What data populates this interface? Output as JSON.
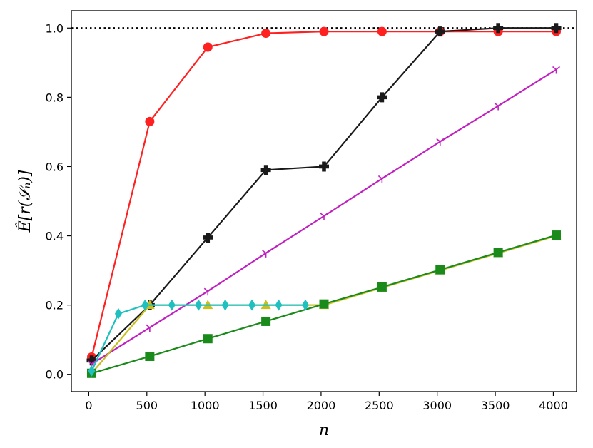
{
  "chart_data": {
    "type": "line",
    "xlabel": "n",
    "ylabel": "Ê[r(𝒮ₙ)]",
    "xlim": [
      -150,
      4200
    ],
    "ylim": [
      -0.05,
      1.05
    ],
    "xticks": [
      0,
      500,
      1000,
      1500,
      2000,
      2500,
      3000,
      3500,
      4000
    ],
    "yticks": [
      0.0,
      0.2,
      0.4,
      0.6,
      0.8,
      1.0
    ],
    "grid": false,
    "reference_line": {
      "y": 1.0,
      "style": "dotted",
      "color": "#000000"
    },
    "series": [
      {
        "color": "#ff2020",
        "marker": "circle",
        "points": [
          [
            25,
            0.05
          ],
          [
            525,
            0.73
          ],
          [
            1025,
            0.945
          ],
          [
            1525,
            0.985
          ],
          [
            2025,
            0.99
          ],
          [
            2525,
            0.99
          ],
          [
            3025,
            0.99
          ],
          [
            3525,
            0.99
          ],
          [
            4025,
            0.99
          ]
        ]
      },
      {
        "color": "#1a1a1a",
        "marker": "plus",
        "points": [
          [
            25,
            0.04
          ],
          [
            525,
            0.2
          ],
          [
            1025,
            0.395
          ],
          [
            1525,
            0.59
          ],
          [
            2025,
            0.6
          ],
          [
            2525,
            0.8
          ],
          [
            3025,
            0.99
          ],
          [
            3525,
            1.0
          ],
          [
            4025,
            1.0
          ]
        ]
      },
      {
        "color": "#c020c0",
        "marker": "tri",
        "points": [
          [
            25,
            0.03
          ],
          [
            525,
            0.135
          ],
          [
            1025,
            0.24
          ],
          [
            1525,
            0.35
          ],
          [
            2025,
            0.457
          ],
          [
            2525,
            0.565
          ],
          [
            3025,
            0.672
          ],
          [
            3525,
            0.775
          ],
          [
            4025,
            0.88
          ]
        ]
      },
      {
        "color": "#c8c020",
        "marker": "triangle",
        "points": [
          [
            25,
            0.003
          ],
          [
            525,
            0.2
          ],
          [
            1025,
            0.2
          ],
          [
            1525,
            0.2
          ],
          [
            2025,
            0.2
          ],
          [
            2525,
            0.25
          ],
          [
            3025,
            0.3
          ],
          [
            3525,
            0.35
          ],
          [
            4025,
            0.4
          ]
        ]
      },
      {
        "color": "#1a8a1a",
        "marker": "square",
        "points": [
          [
            25,
            0.003
          ],
          [
            525,
            0.052
          ],
          [
            1025,
            0.103
          ],
          [
            1525,
            0.153
          ],
          [
            2025,
            0.203
          ],
          [
            2525,
            0.252
          ],
          [
            3025,
            0.302
          ],
          [
            3525,
            0.352
          ],
          [
            4025,
            0.402
          ]
        ]
      },
      {
        "color": "#20c0c0",
        "marker": "diamond",
        "points": [
          [
            25,
            0.01
          ],
          [
            255,
            0.175
          ],
          [
            485,
            0.2
          ],
          [
            715,
            0.2
          ],
          [
            945,
            0.2
          ],
          [
            1175,
            0.2
          ],
          [
            1405,
            0.2
          ],
          [
            1635,
            0.2
          ],
          [
            1865,
            0.2
          ]
        ]
      }
    ]
  }
}
